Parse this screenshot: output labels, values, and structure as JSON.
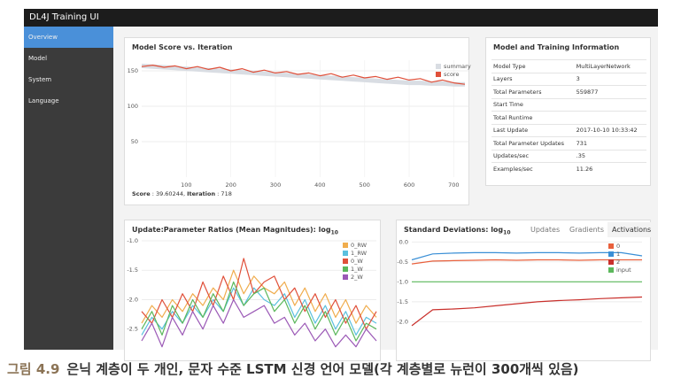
{
  "header": {
    "title": "DL4J Training UI"
  },
  "sidebar": {
    "items": [
      "Overview",
      "Model",
      "System",
      "Language"
    ]
  },
  "info": {
    "title": "Model and Training Information",
    "rows": [
      [
        "Model Type",
        "MultiLayerNetwork"
      ],
      [
        "Layers",
        "3"
      ],
      [
        "Total Parameters",
        "559877"
      ],
      [
        "Start Time",
        ""
      ],
      [
        "Total Runtime",
        ""
      ],
      [
        "Last Update",
        "2017-10-10 10:33:42"
      ],
      [
        "Total Parameter Updates",
        "731"
      ],
      [
        "Updates/sec",
        ".35"
      ],
      [
        "Examples/sec",
        "11.26"
      ]
    ]
  },
  "score_footer": {
    "score_label": "Score",
    "score": ": 39.60244,",
    "iteration_label": "Iteration",
    "iteration": ": 718"
  },
  "tabs": [
    "Updates",
    "Gradients",
    "Activations"
  ],
  "caption": {
    "label": "그림 4.9",
    "text": "은닉 계층이 두 개인, 문자 수준 LSTM 신경 언어 모델(각 계층별로 뉴런이 300개씩 있음)"
  },
  "chart_data": [
    {
      "type": "line",
      "title": "Model Score vs. Iteration",
      "legend": "upper right",
      "x": [
        0,
        25,
        50,
        75,
        100,
        125,
        150,
        175,
        200,
        225,
        250,
        275,
        300,
        325,
        350,
        375,
        400,
        425,
        450,
        475,
        500,
        525,
        550,
        575,
        600,
        625,
        650,
        675,
        700,
        725
      ],
      "series": [
        {
          "name": "summary",
          "color": "#d9dde3",
          "values": [
            157,
            156,
            155,
            154,
            153,
            152,
            151,
            150,
            149,
            148,
            147,
            146,
            145,
            144,
            143,
            142,
            141,
            140,
            139,
            138,
            137,
            136,
            135,
            134,
            133,
            133,
            132,
            132,
            131,
            131
          ]
        },
        {
          "name": "score",
          "color": "#e0503a",
          "values": [
            156,
            158,
            155,
            157,
            153,
            156,
            152,
            155,
            150,
            153,
            148,
            151,
            147,
            149,
            145,
            147,
            143,
            146,
            141,
            144,
            140,
            142,
            138,
            141,
            137,
            139,
            134,
            137,
            133,
            131
          ]
        }
      ],
      "xlim": [
        0,
        735
      ],
      "xticks": [
        100,
        200,
        300,
        400,
        500,
        600,
        700
      ],
      "ylim": [
        0,
        165
      ],
      "yticks": [
        50,
        100,
        150
      ],
      "grid": true
    },
    {
      "type": "line",
      "title": "Update:Parameter Ratios (Mean Magnitudes): log",
      "title_sub": "10",
      "legend": "upper right",
      "series": [
        {
          "name": "0_RW",
          "color": "#f0ad4e",
          "values": [
            -2.4,
            -2.1,
            -2.3,
            -2.0,
            -2.2,
            -1.9,
            -2.1,
            -1.8,
            -2.0,
            -1.5,
            -1.9,
            -1.6,
            -1.8,
            -1.9,
            -1.7,
            -2.1,
            -1.8,
            -2.2,
            -1.9,
            -2.3,
            -2.0,
            -2.4,
            -2.1,
            -2.3
          ]
        },
        {
          "name": "1_RW",
          "color": "#5bc0de",
          "values": [
            -2.6,
            -2.3,
            -2.5,
            -2.2,
            -2.4,
            -2.1,
            -2.3,
            -2.0,
            -2.2,
            -1.8,
            -2.1,
            -1.8,
            -2.0,
            -2.1,
            -1.9,
            -2.3,
            -2.0,
            -2.4,
            -2.1,
            -2.5,
            -2.2,
            -2.6,
            -2.3,
            -2.4
          ]
        },
        {
          "name": "0_W",
          "color": "#e0503a",
          "values": [
            -2.2,
            -2.4,
            -2.0,
            -2.3,
            -1.9,
            -2.2,
            -1.7,
            -2.1,
            -1.6,
            -2.0,
            -1.3,
            -1.9,
            -1.7,
            -1.6,
            -2.0,
            -1.8,
            -2.2,
            -1.9,
            -2.3,
            -2.0,
            -2.4,
            -2.1,
            -2.5,
            -2.2
          ]
        },
        {
          "name": "1_W",
          "color": "#5cb85c",
          "values": [
            -2.5,
            -2.2,
            -2.6,
            -2.1,
            -2.4,
            -2.0,
            -2.3,
            -1.9,
            -2.2,
            -1.7,
            -2.1,
            -1.9,
            -1.8,
            -2.2,
            -2.0,
            -2.4,
            -2.1,
            -2.5,
            -2.2,
            -2.6,
            -2.3,
            -2.7,
            -2.4,
            -2.5
          ]
        },
        {
          "name": "2_W",
          "color": "#9b59b6",
          "values": [
            -2.7,
            -2.4,
            -2.8,
            -2.3,
            -2.6,
            -2.2,
            -2.5,
            -2.1,
            -2.4,
            -2.0,
            -2.3,
            -2.2,
            -2.1,
            -2.4,
            -2.3,
            -2.6,
            -2.4,
            -2.7,
            -2.5,
            -2.8,
            -2.6,
            -2.8,
            -2.5,
            -2.7
          ]
        }
      ],
      "ylim": [
        -2.85,
        -0.97
      ],
      "yticks": [
        {
          "value": -1,
          "label": "-1.0"
        },
        -1.5,
        {
          "value": -2,
          "label": "-2.0"
        },
        -2.5
      ],
      "grid": true
    },
    {
      "type": "line",
      "title": "Standard Deviations: log",
      "title_sub": "10",
      "legend": "upper right",
      "series": [
        {
          "name": "0",
          "color": "#e8603c",
          "values": [
            -0.55,
            -0.48,
            -0.47,
            -0.46,
            -0.45,
            -0.46,
            -0.45,
            -0.45,
            -0.46,
            -0.45,
            -0.45,
            -0.45
          ]
        },
        {
          "name": "1",
          "color": "#3a8fd6",
          "values": [
            -0.45,
            -0.3,
            -0.28,
            -0.27,
            -0.27,
            -0.28,
            -0.27,
            -0.27,
            -0.28,
            -0.27,
            -0.27,
            -0.35
          ]
        },
        {
          "name": "2",
          "color": "#c9302c",
          "values": [
            -2.1,
            -1.7,
            -1.68,
            -1.65,
            -1.6,
            -1.55,
            -1.5,
            -1.47,
            -1.45,
            -1.42,
            -1.4,
            -1.38
          ]
        },
        {
          "name": "input",
          "color": "#5cb85c",
          "values": [
            -1,
            -1,
            -1,
            -1,
            -1,
            -1,
            -1,
            -1,
            -1,
            -1,
            -1,
            -1
          ]
        }
      ],
      "ylim": [
        -2.7,
        0.05
      ],
      "yticks": [
        {
          "value": 0,
          "label": "0.0"
        },
        -0.5,
        {
          "value": -1,
          "label": "-1.0"
        },
        -1.5,
        {
          "value": -2,
          "label": "-2.0"
        }
      ],
      "grid": true
    }
  ]
}
